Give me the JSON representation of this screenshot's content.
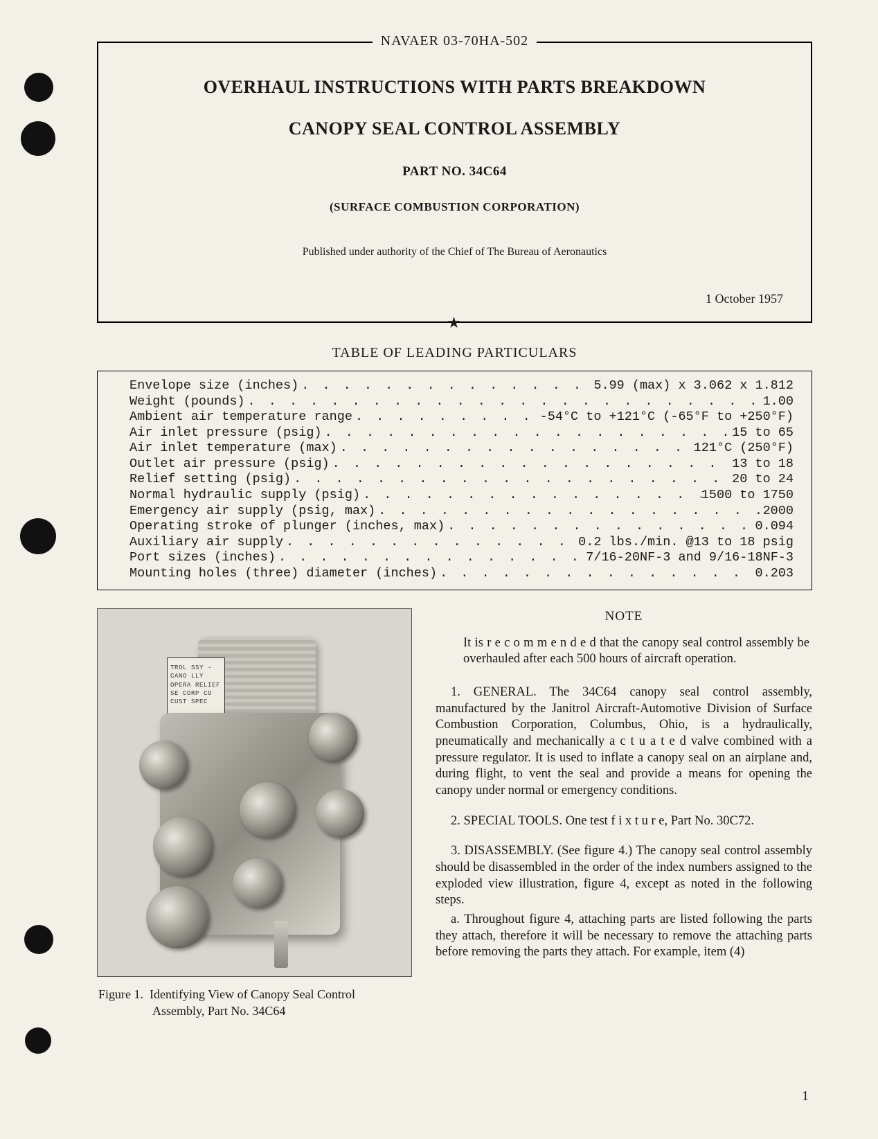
{
  "docId": "NAVAER 03-70HA-502",
  "title": "OVERHAUL INSTRUCTIONS WITH PARTS BREAKDOWN",
  "subtitle": "CANOPY SEAL CONTROL ASSEMBLY",
  "partNoLine": "PART NO. 34C64",
  "corp": "(SURFACE COMBUSTION CORPORATION)",
  "authority": "Published under authority of the Chief of The Bureau of Aeronautics",
  "date": "1 October 1957",
  "star": "★",
  "tableTitle": "TABLE OF LEADING PARTICULARS",
  "specs": [
    {
      "label": "Envelope size (inches)",
      "value": "5.99 (max) x 3.062 x 1.812"
    },
    {
      "label": "Weight (pounds)",
      "value": "1.00"
    },
    {
      "label": "Ambient air temperature range",
      "value": "-54°C to +121°C (-65°F to +250°F)"
    },
    {
      "label": "Air inlet pressure (psig)",
      "value": "15 to 65"
    },
    {
      "label": "Air inlet temperature (max)",
      "value": "121°C (250°F)"
    },
    {
      "label": "Outlet air pressure (psig)",
      "value": "13 to 18"
    },
    {
      "label": "Relief setting (psig)",
      "value": "20 to 24"
    },
    {
      "label": "Normal hydraulic supply (psig)",
      "value": "1500 to 1750"
    },
    {
      "label": "Emergency air supply (psig, max)",
      "value": "2000"
    },
    {
      "label": "Operating stroke of plunger (inches, max)",
      "value": "0.094"
    },
    {
      "label": "Auxiliary air supply",
      "value": "0.2 lbs./min. @13 to 18 psig"
    },
    {
      "label": "Port sizes (inches)",
      "value": "7/16-20NF-3 and 9/16-18NF-3"
    },
    {
      "label": "Mounting holes (three) diameter (inches)",
      "value": "0.203"
    }
  ],
  "plateLines": "TROL\nSSY - CANO\nLLY OPERA\nRELIEF SE\nCORP  CO\nCUST SPEC",
  "figCaptionLead": "Figure 1.",
  "figCaptionRest": "Identifying View of Canopy Seal Control",
  "figCaptionLine2": "Assembly, Part No. 34C64",
  "noteHead": "NOTE",
  "noteBody": "It is r e c o m m e n d e d that the canopy seal control assembly be overhauled after each 500 hours of aircraft operation.",
  "para1": "1. GENERAL. The 34C64 canopy seal control assembly, manufactured by the Janitrol Aircraft-Automotive Division of Surface Combustion Corporation, Columbus, Ohio, is a hydraulically, pneumatically and mechanically a c t u a t e d valve combined with a pressure regulator. It is used to inflate a canopy seal on an airplane and, during flight, to vent the seal and provide a means for opening the canopy under normal or emergency conditions.",
  "para2": "2. SPECIAL TOOLS. One test f i x t u r e, Part No. 30C72.",
  "para3": "3. DISASSEMBLY. (See figure 4.) The canopy seal control assembly should be disassembled in the order of the index numbers assigned to the exploded view illustration, figure 4, except as noted in the following steps.",
  "para3a": "a. Throughout figure 4, attaching parts are listed following the parts they attach, therefore it will be necessary to remove the attaching parts before removing the parts they attach. For example, item (4)",
  "pageNum": "1",
  "colors": {
    "pageBg": "#f3f0e8",
    "ink": "#1a1a1a"
  }
}
